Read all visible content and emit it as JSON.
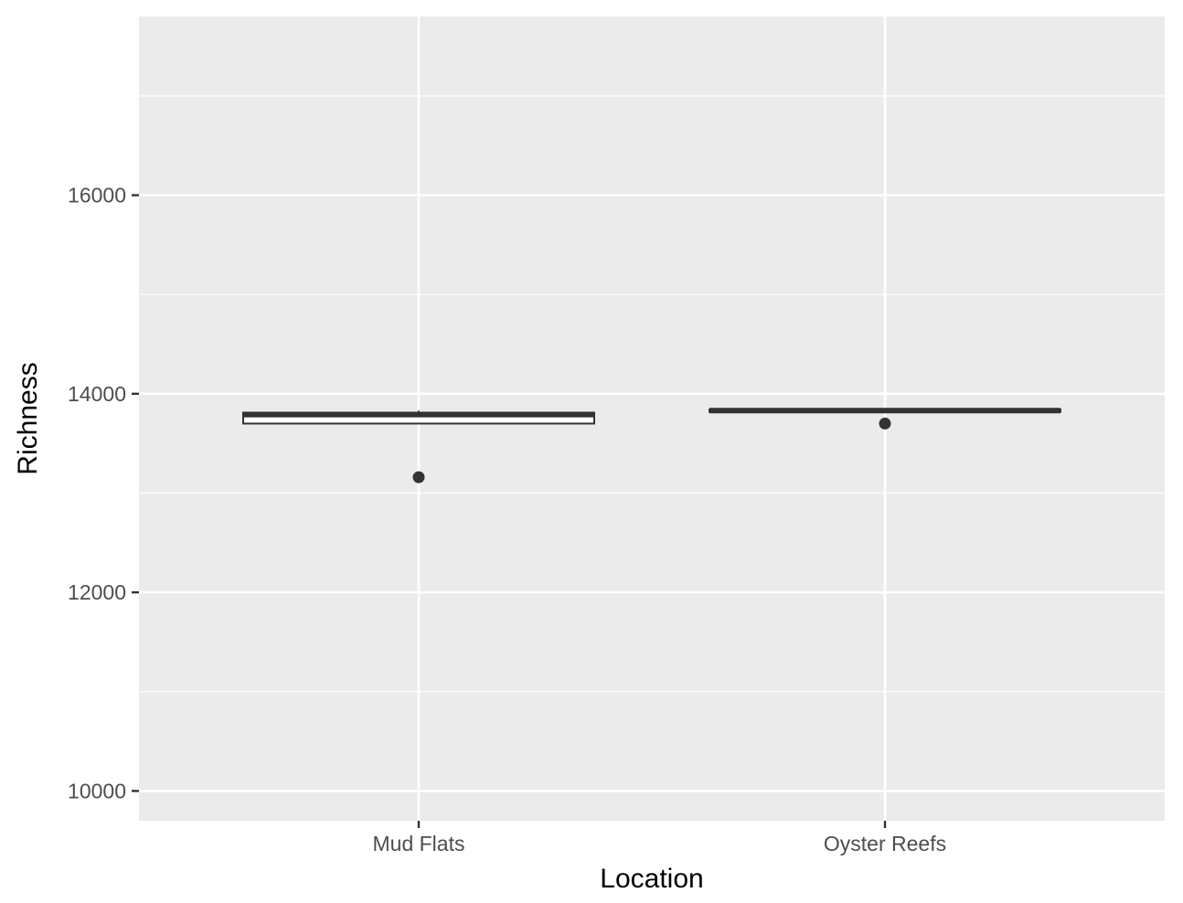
{
  "chart_data": {
    "type": "boxplot",
    "title": "",
    "xlabel": "Location",
    "ylabel": "Richness",
    "categories": [
      "Mud Flats",
      "Oyster Reefs"
    ],
    "ylim": [
      9700,
      17800
    ],
    "y_ticks_major": [
      10000,
      12000,
      14000,
      16000
    ],
    "y_tick_labels": [
      "10000",
      "12000",
      "14000",
      "16000"
    ],
    "y_ticks_minor": [
      11000,
      13000,
      15000,
      17000
    ],
    "boxes": [
      {
        "category": "Mud Flats",
        "min": 13700,
        "q1": 13700,
        "median": 13790,
        "q3": 13810,
        "max": 13830,
        "outliers": [
          13160
        ]
      },
      {
        "category": "Oyster Reefs",
        "min": 13820,
        "q1": 13820,
        "median": 13830,
        "q3": 13840,
        "max": 13850,
        "outliers": [
          13700
        ]
      }
    ],
    "grid": true,
    "legend": "none",
    "colors": {
      "panel": "#ebebeb",
      "grid": "#ffffff",
      "box_line": "#333333",
      "box_fill": "#ffffff",
      "outlier": "#333333"
    }
  }
}
